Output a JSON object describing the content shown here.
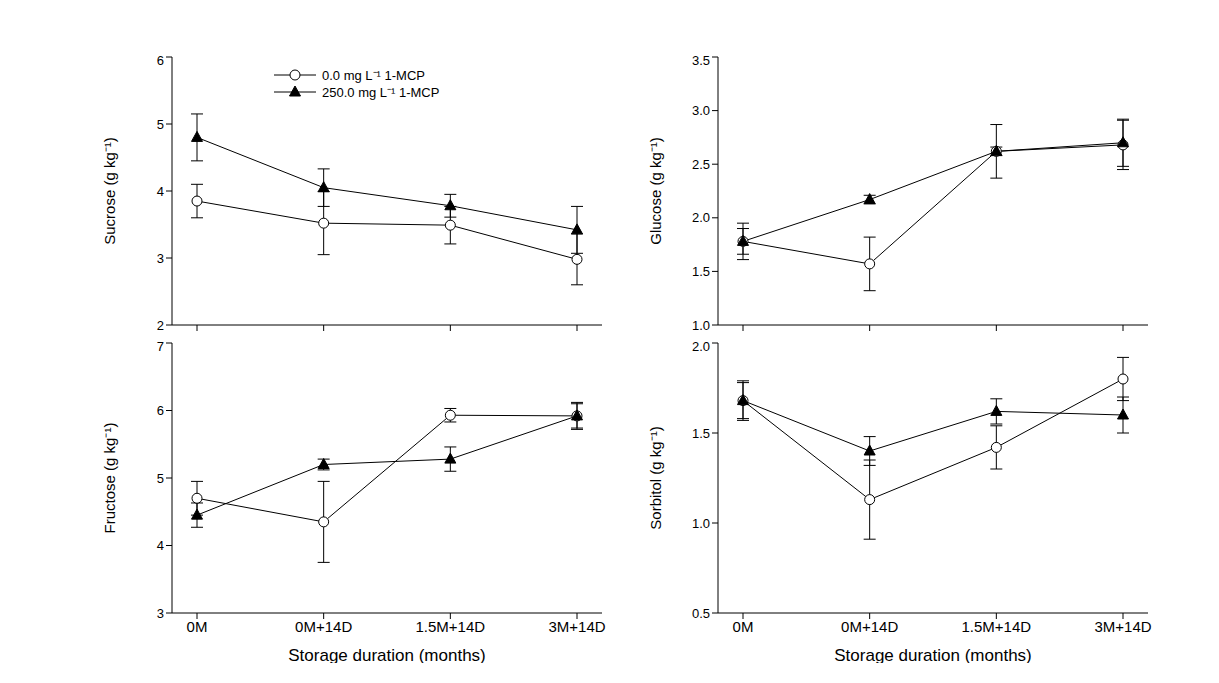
{
  "chart_data": [
    {
      "type": "line",
      "y_label": "Sucrose (g kg⁻¹)",
      "categories": [
        "0M",
        "0M+14D",
        "1.5M+14D",
        "3M+14D"
      ],
      "ylim": [
        2,
        6
      ],
      "yticks": [
        2,
        3,
        4,
        5,
        6
      ],
      "tick_labels": "y",
      "legend": "top",
      "series": [
        {
          "name": "0.0 mg L⁻¹ 1-MCP",
          "color": "#000000",
          "marker": "open_circle",
          "values": [
            3.85,
            3.52,
            3.49,
            2.98
          ],
          "error": [
            0.25,
            0.47,
            0.28,
            0.38
          ]
        },
        {
          "name": "250.0 mg L⁻¹ 1-MCP",
          "color": "#000000",
          "marker": "triangle",
          "values": [
            4.8,
            4.05,
            3.78,
            3.42
          ],
          "error": [
            0.35,
            0.28,
            0.17,
            0.35
          ]
        }
      ]
    },
    {
      "type": "line",
      "y_label": "Glucose (g kg⁻¹)",
      "categories": [
        "0M",
        "0M+14D",
        "1.5M+14D",
        "3M+14D"
      ],
      "ylim": [
        1,
        3.5
      ],
      "yticks": [
        {
          "value": 1,
          "label": "1.0"
        },
        1.5,
        {
          "value": 2,
          "label": "2.0"
        },
        2.5,
        {
          "value": 3,
          "label": "3.0"
        },
        3.5
      ],
      "tick_labels": "y",
      "series": [
        {
          "name": "0.0 mg L⁻¹ 1-MCP",
          "color": "#000000",
          "marker": "open_circle",
          "values": [
            1.78,
            1.57,
            2.62,
            2.68
          ],
          "error": [
            0.17,
            0.25,
            0.25,
            0.23
          ]
        },
        {
          "name": "250.0 mg L⁻¹ 1-MCP",
          "color": "#000000",
          "marker": "triangle",
          "values": [
            1.78,
            2.17,
            2.62,
            2.7
          ],
          "error": [
            0.12,
            0.04,
            0.04,
            0.22
          ]
        }
      ]
    },
    {
      "type": "line",
      "y_label": "Fructose (g kg⁻¹)",
      "x_label": "Storage duration (months)",
      "categories": [
        "0M",
        "0M+14D",
        "1.5M+14D",
        "3M+14D"
      ],
      "ylim": [
        3,
        7
      ],
      "yticks": [
        3,
        4,
        5,
        6,
        7
      ],
      "series": [
        {
          "name": "0.0 mg L⁻¹ 1-MCP",
          "color": "#000000",
          "marker": "open_circle",
          "values": [
            4.7,
            4.35,
            5.93,
            5.92
          ],
          "error": [
            0.25,
            0.6,
            0.1,
            0.2
          ]
        },
        {
          "name": "250.0 mg L⁻¹ 1-MCP",
          "color": "#000000",
          "marker": "triangle",
          "values": [
            4.45,
            5.2,
            5.28,
            5.92
          ],
          "error": [
            0.18,
            0.08,
            0.18,
            0.18
          ]
        }
      ]
    },
    {
      "type": "line",
      "y_label": "Sorbitol (g kg⁻¹)",
      "x_label": "Storage duration (months)",
      "categories": [
        "0M",
        "0M+14D",
        "1.5M+14D",
        "3M+14D"
      ],
      "ylim": [
        0.5,
        2
      ],
      "yticks": [
        0.5,
        {
          "value": 1,
          "label": "1.0"
        },
        1.5,
        {
          "value": 2,
          "label": "2.0"
        }
      ],
      "series": [
        {
          "name": "0.0 mg L⁻¹ 1-MCP",
          "color": "#000000",
          "marker": "open_circle",
          "values": [
            1.68,
            1.13,
            1.42,
            1.8
          ],
          "error": [
            0.11,
            0.22,
            0.12,
            0.12
          ]
        },
        {
          "name": "250.0 mg L⁻¹ 1-MCP",
          "color": "#000000",
          "marker": "triangle",
          "values": [
            1.68,
            1.4,
            1.62,
            1.6
          ],
          "error": [
            0.1,
            0.08,
            0.07,
            0.1
          ]
        }
      ]
    }
  ]
}
